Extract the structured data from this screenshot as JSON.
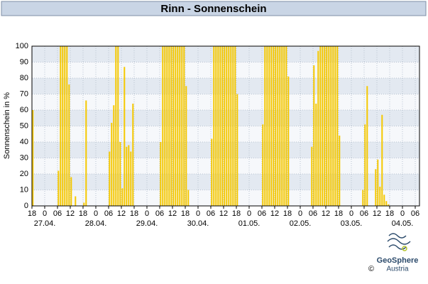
{
  "chart_data": {
    "type": "bar",
    "title": "Rinn - Sonnenschein",
    "y_label": "Sonnenschein in %",
    "x": [
      0,
      12,
      13,
      14,
      15,
      16,
      17,
      18,
      20,
      24,
      25,
      36,
      37,
      38,
      39,
      40,
      41,
      42,
      43,
      44,
      45,
      46,
      47,
      60,
      61,
      62,
      63,
      64,
      65,
      66,
      67,
      68,
      69,
      70,
      71,
      72,
      73,
      84,
      85,
      86,
      87,
      88,
      89,
      90,
      91,
      92,
      93,
      94,
      95,
      96,
      108,
      109,
      110,
      111,
      112,
      113,
      114,
      115,
      116,
      117,
      118,
      119,
      120,
      131,
      132,
      133,
      134,
      135,
      136,
      137,
      138,
      139,
      140,
      141,
      142,
      143,
      144,
      155,
      156,
      157,
      161,
      162,
      163,
      164,
      165,
      166,
      167
    ],
    "values": [
      60,
      22,
      100,
      100,
      100,
      100,
      76,
      18,
      6,
      2,
      66,
      34,
      52,
      63,
      100,
      100,
      40,
      11,
      87,
      37,
      38,
      34,
      64,
      40,
      100,
      100,
      100,
      100,
      100,
      100,
      100,
      100,
      100,
      100,
      100,
      75,
      10,
      42,
      100,
      100,
      100,
      100,
      100,
      100,
      100,
      100,
      100,
      100,
      100,
      70,
      51,
      100,
      100,
      100,
      100,
      100,
      100,
      100,
      100,
      100,
      100,
      100,
      81,
      37,
      88,
      64,
      97,
      100,
      100,
      100,
      100,
      100,
      100,
      100,
      100,
      100,
      44,
      10,
      51,
      75,
      23,
      29,
      12,
      57,
      7,
      3,
      1
    ],
    "color": "#f5c800",
    "xlim": [
      0,
      182
    ],
    "ylim": [
      0,
      100
    ],
    "yticks": [
      0,
      10,
      20,
      30,
      40,
      50,
      60,
      70,
      80,
      90,
      100
    ],
    "xticks": [
      {
        "value": 0,
        "label": "18"
      },
      {
        "value": 6,
        "label": "0"
      },
      {
        "value": 12,
        "label": "06"
      },
      {
        "value": 18,
        "label": "12"
      },
      {
        "value": 24,
        "label": "18"
      },
      {
        "value": 30,
        "label": "0"
      },
      {
        "value": 36,
        "label": "06"
      },
      {
        "value": 42,
        "label": "12"
      },
      {
        "value": 48,
        "label": "18"
      },
      {
        "value": 54,
        "label": "0"
      },
      {
        "value": 60,
        "label": "06"
      },
      {
        "value": 66,
        "label": "12"
      },
      {
        "value": 72,
        "label": "18"
      },
      {
        "value": 78,
        "label": "0"
      },
      {
        "value": 84,
        "label": "06"
      },
      {
        "value": 90,
        "label": "12"
      },
      {
        "value": 96,
        "label": "18"
      },
      {
        "value": 102,
        "label": "0"
      },
      {
        "value": 108,
        "label": "06"
      },
      {
        "value": 114,
        "label": "12"
      },
      {
        "value": 120,
        "label": "18"
      },
      {
        "value": 126,
        "label": "0"
      },
      {
        "value": 132,
        "label": "06"
      },
      {
        "value": 138,
        "label": "12"
      },
      {
        "value": 144,
        "label": "18"
      },
      {
        "value": 150,
        "label": "0"
      },
      {
        "value": 156,
        "label": "06"
      },
      {
        "value": 162,
        "label": "12"
      },
      {
        "value": 168,
        "label": "18"
      },
      {
        "value": 174,
        "label": "0"
      },
      {
        "value": 180,
        "label": "06"
      }
    ],
    "date_labels": [
      {
        "value": 6,
        "label": "27.04."
      },
      {
        "value": 30,
        "label": "28.04."
      },
      {
        "value": 54,
        "label": "29.04."
      },
      {
        "value": 78,
        "label": "30.04."
      },
      {
        "value": 102,
        "label": "01.05."
      },
      {
        "value": 126,
        "label": "02.05."
      },
      {
        "value": 150,
        "label": "03.05."
      },
      {
        "value": 174,
        "label": "04.05."
      }
    ],
    "grid": true
  },
  "logo": {
    "name": "GeoSphere",
    "country": "Austria",
    "copyright": "©"
  }
}
